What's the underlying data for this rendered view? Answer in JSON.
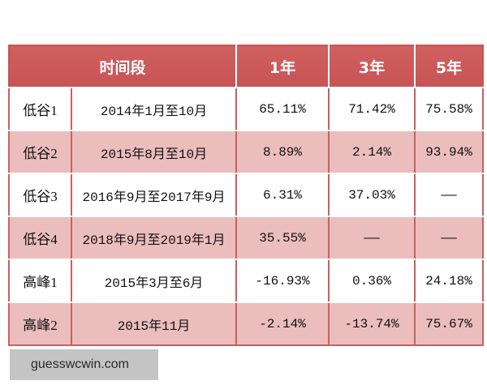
{
  "chart_data": {
    "type": "table",
    "columns": [
      "时间段",
      "1年",
      "3年",
      "5年"
    ],
    "rows": [
      {
        "label": "低谷1",
        "period": "2014年1月至10月",
        "1y": "65.11%",
        "3y": "71.42%",
        "5y": "75.58%"
      },
      {
        "label": "低谷2",
        "period": "2015年8月至10月",
        "1y": "8.89%",
        "3y": "2.14%",
        "5y": "93.94%"
      },
      {
        "label": "低谷3",
        "period": "2016年9月至2017年9月",
        "1y": "6.31%",
        "3y": "37.03%",
        "5y": "——"
      },
      {
        "label": "低谷4",
        "period": "2018年9月至2019年1月",
        "1y": "35.55%",
        "3y": "——",
        "5y": "——"
      },
      {
        "label": "高峰1",
        "period": "2015年3月至6月",
        "1y": "-16.93%",
        "3y": "0.36%",
        "5y": "24.18%"
      },
      {
        "label": "高峰2",
        "period": "2015年11月",
        "1y": "-2.14%",
        "3y": "-13.74%",
        "5y": "75.67%"
      }
    ]
  },
  "watermark": {
    "text": "guesswcwin.com"
  },
  "colors": {
    "header_bg": "#c85455",
    "header_text": "#ffffff",
    "row_bg": "#ffffff",
    "row_alt_bg": "#ebbdbd",
    "grid": "#c86062",
    "watermark_bg": "#c4c4c4",
    "watermark_text": "#2a2a2a"
  }
}
